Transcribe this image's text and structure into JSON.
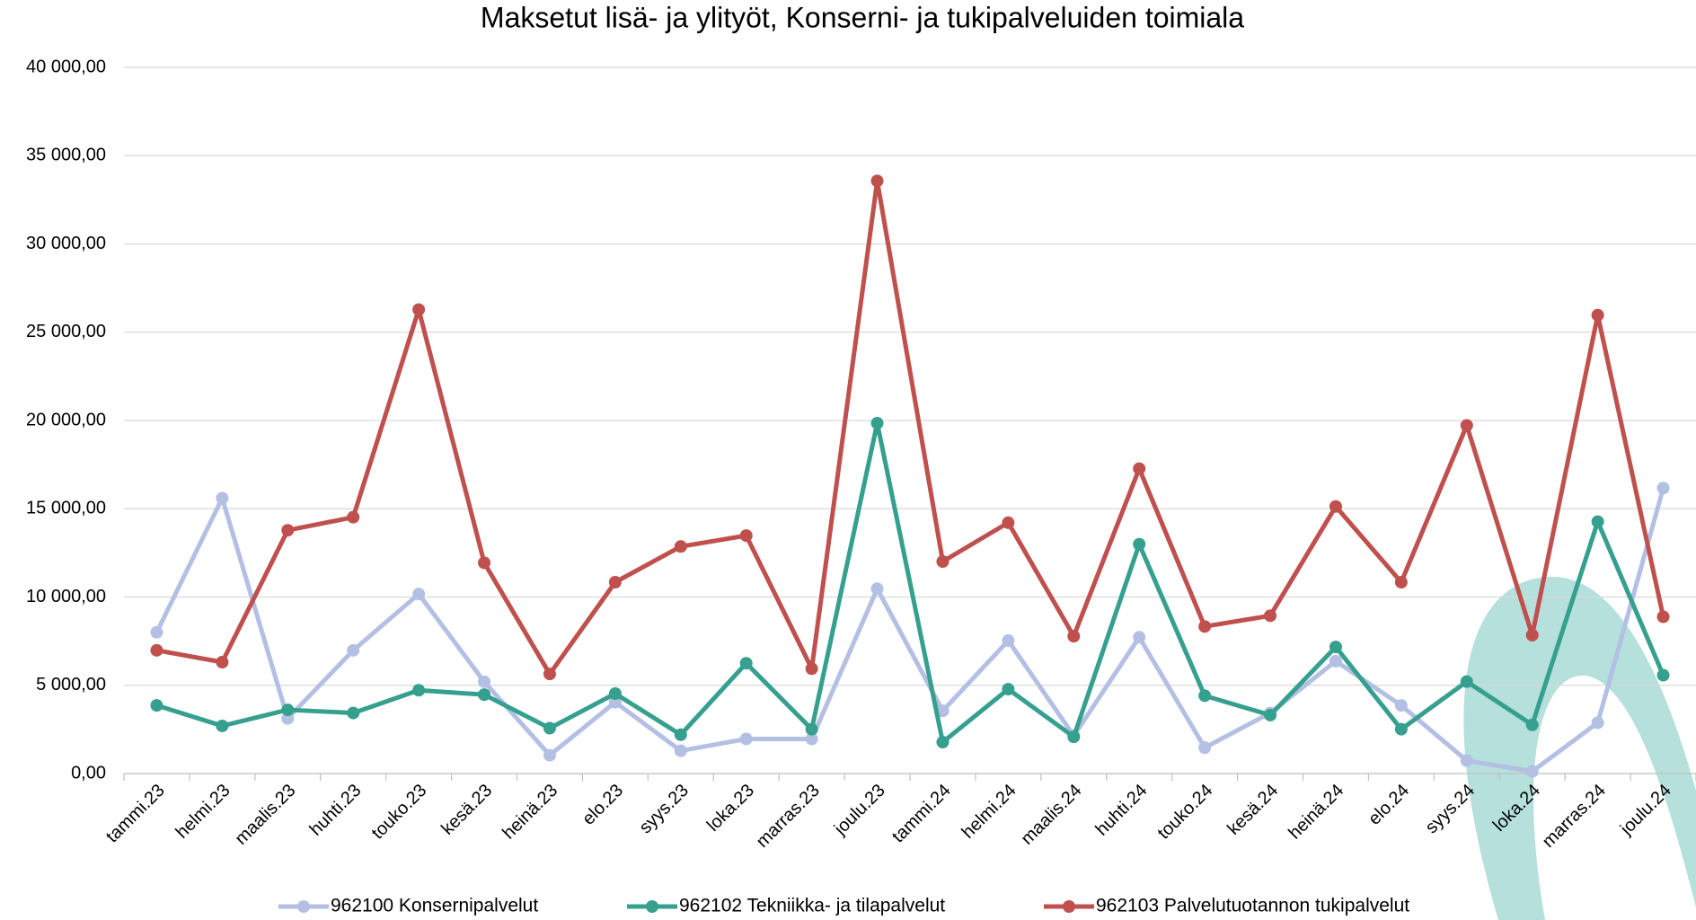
{
  "chart_data": {
    "type": "line",
    "title": "Maksetut lisä- ja ylityöt, Konserni- ja tukipalveluiden toimiala",
    "categories": [
      "tammi.23",
      "helmi.23",
      "maalis.23",
      "huhti.23",
      "touko.23",
      "kesä.23",
      "heinä.23",
      "elo.23",
      "syys.23",
      "loka.23",
      "marras.23",
      "joulu.23",
      "tammi.24",
      "helmi.24",
      "maalis.24",
      "huhti.24",
      "touko.24",
      "kesä.24",
      "heinä.24",
      "elo.24",
      "syys.24",
      "loka.24",
      "marras.24",
      "joulu.24"
    ],
    "series": [
      {
        "name": "962100 Konsernipalvelut",
        "color": "#b4bfe4",
        "values": [
          8000,
          15600,
          3120,
          6980,
          10170,
          5200,
          1040,
          4040,
          1290,
          1960,
          1960,
          10470,
          3550,
          7530,
          2140,
          7720,
          1470,
          3430,
          6370,
          3860,
          735,
          120,
          2880,
          16170
        ]
      },
      {
        "name": "962102 Tekniikka- ja tilapalvelut",
        "color": "#36a08f",
        "values": [
          3860,
          2700,
          3610,
          3430,
          4720,
          4470,
          2570,
          4530,
          2200,
          6250,
          2510,
          19850,
          1780,
          4780,
          2080,
          12990,
          4410,
          3310,
          7170,
          2510,
          5210,
          2760,
          14270,
          5570
        ]
      },
      {
        "name": "962103 Palvelutuotannon tukipalvelut",
        "color": "#c0504d",
        "values": [
          6980,
          6310,
          13780,
          14520,
          26280,
          11940,
          5640,
          10840,
          12860,
          13480,
          5940,
          33570,
          12010,
          14210,
          7780,
          17270,
          8330,
          8940,
          15130,
          10840,
          19720,
          7840,
          25970,
          8880
        ]
      }
    ],
    "ylim": [
      0,
      40000
    ],
    "yticks": [
      {
        "value": 0,
        "label": "0,00"
      },
      {
        "value": 5000,
        "label": "5 000,00"
      },
      {
        "value": 10000,
        "label": "10 000,00"
      },
      {
        "value": 15000,
        "label": "15 000,00"
      },
      {
        "value": 20000,
        "label": "20 000,00"
      },
      {
        "value": 25000,
        "label": "25 000,00"
      },
      {
        "value": 30000,
        "label": "30 000,00"
      },
      {
        "value": 35000,
        "label": "35 000,00"
      },
      {
        "value": 40000,
        "label": "40 000,00"
      }
    ],
    "grid": true,
    "legend": "bottom"
  }
}
